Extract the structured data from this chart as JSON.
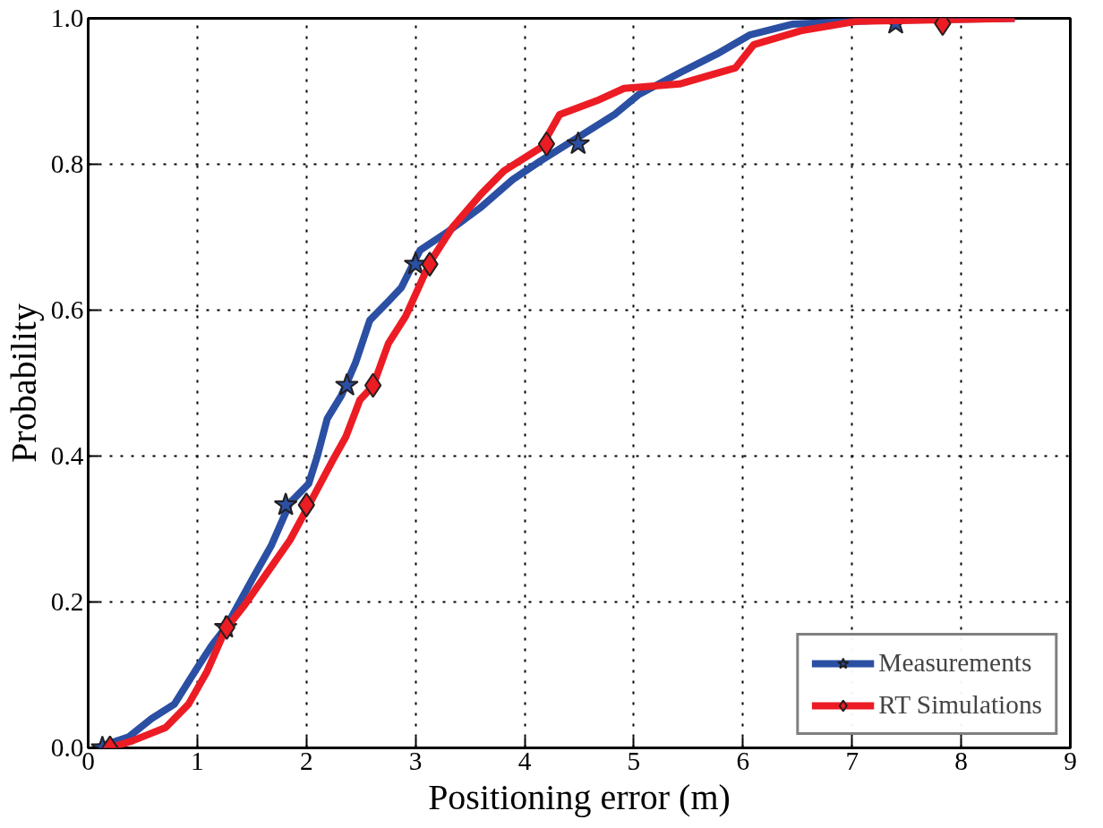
{
  "chart_data": {
    "type": "line",
    "xlabel": "Positioning error (m)",
    "ylabel": "Probability",
    "xlim": [
      0,
      9
    ],
    "ylim": [
      0,
      1
    ],
    "xticks": [
      0,
      1,
      2,
      3,
      4,
      5,
      6,
      7,
      8,
      9
    ],
    "yticks": [
      {
        "value": 0,
        "label": "0.0"
      },
      0.2,
      0.4,
      0.6,
      0.8,
      {
        "value": 1,
        "label": "1.0"
      }
    ],
    "grid": true,
    "legend": "bottom right",
    "line_style": "solid",
    "series": [
      {
        "name": "Measurements",
        "color": "#2b4fa3",
        "x": [
          0.07,
          0.37,
          0.58,
          0.79,
          1.0,
          1.13,
          1.26,
          1.51,
          1.68,
          1.85,
          2.02,
          2.1,
          2.19,
          2.32,
          2.45,
          2.58,
          2.75,
          2.87,
          3.04,
          3.3,
          3.59,
          3.89,
          4.15,
          4.49,
          4.83,
          5.04,
          5.43,
          5.76,
          6.06,
          6.45,
          7.2,
          8.49
        ],
        "values": [
          0,
          0.015,
          0.04,
          0.06,
          0.11,
          0.14,
          0.165,
          0.233,
          0.278,
          0.336,
          0.362,
          0.4,
          0.451,
          0.483,
          0.528,
          0.586,
          0.612,
          0.631,
          0.682,
          0.708,
          0.74,
          0.779,
          0.805,
          0.837,
          0.869,
          0.895,
          0.926,
          0.951,
          0.977,
          0.992,
          0.997,
          1.0
        ]
      },
      {
        "type": "scatter",
        "color": "#2b4fa3",
        "marker": "star",
        "x": [
          0.13,
          1.26,
          1.81,
          2.37,
          3.0,
          4.49,
          7.4
        ],
        "values": [
          0,
          0.165,
          0.333,
          0.497,
          0.663,
          0.828,
          0.993
        ]
      },
      {
        "name": "RT Simulations",
        "color": "#ec1c24",
        "x": [
          0.2,
          0.41,
          0.71,
          0.92,
          1.09,
          1.26,
          1.43,
          1.64,
          1.85,
          2.02,
          2.24,
          2.36,
          2.49,
          2.61,
          2.75,
          2.91,
          3.13,
          3.34,
          3.6,
          3.81,
          4.15,
          4.32,
          4.66,
          4.91,
          5.42,
          5.93,
          6.1,
          6.53,
          7.04,
          8.49
        ],
        "values": [
          0,
          0.01,
          0.028,
          0.06,
          0.105,
          0.163,
          0.195,
          0.24,
          0.285,
          0.332,
          0.394,
          0.426,
          0.477,
          0.496,
          0.554,
          0.592,
          0.665,
          0.714,
          0.759,
          0.791,
          0.823,
          0.868,
          0.887,
          0.904,
          0.91,
          0.932,
          0.964,
          0.983,
          0.996,
          1.0
        ]
      },
      {
        "type": "scatter",
        "color": "#ec1c24",
        "marker": "diamond",
        "x": [
          0.2,
          1.27,
          2.0,
          2.61,
          3.13,
          4.2,
          7.83
        ],
        "values": [
          0,
          0.165,
          0.333,
          0.497,
          0.663,
          0.828,
          0.993
        ]
      }
    ]
  }
}
